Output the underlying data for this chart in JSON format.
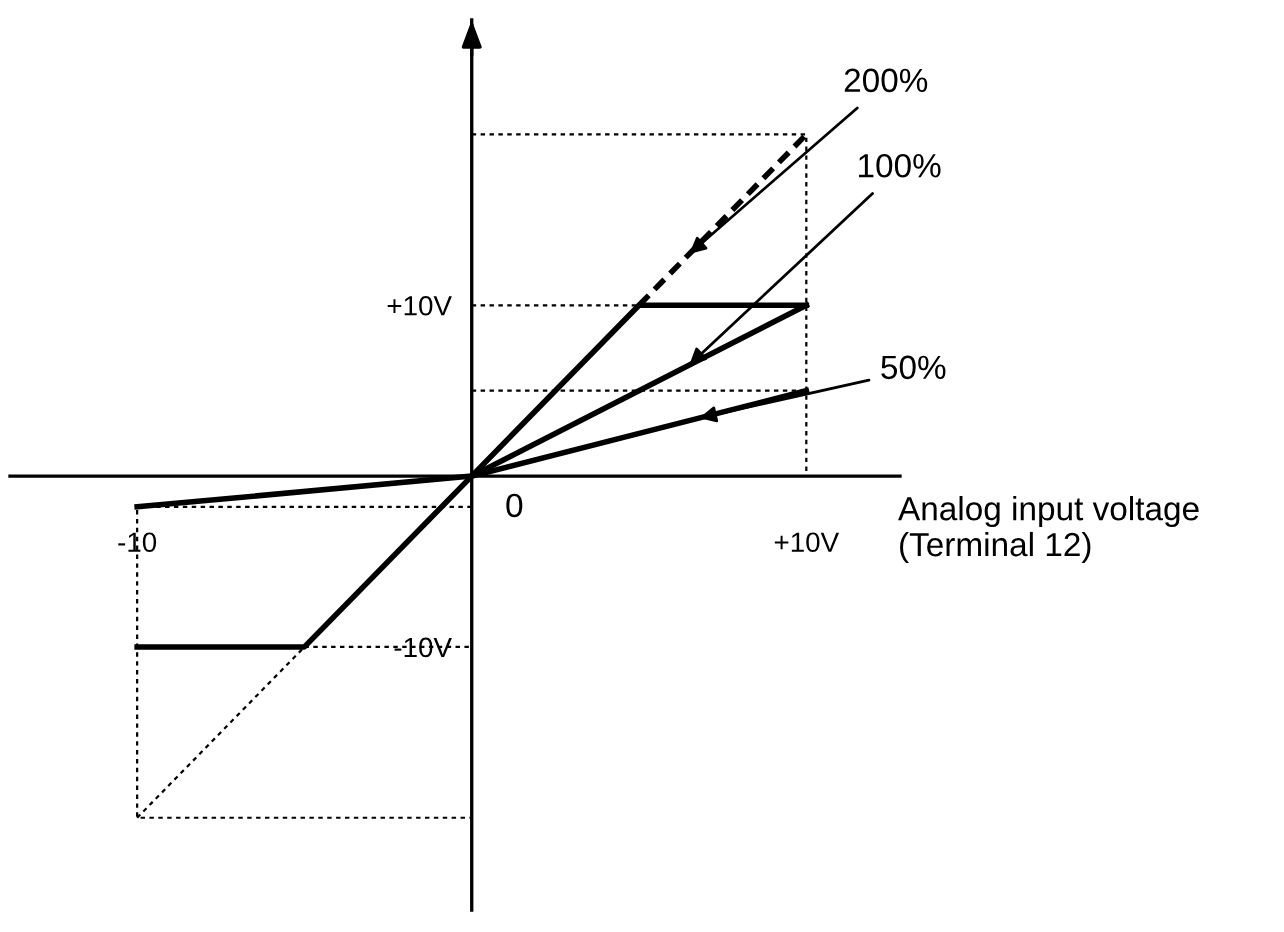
{
  "chart_data": {
    "type": "line",
    "xlabel": "Analog input voltage\n(Terminal 12)",
    "xlim": [
      -13.8,
      12.8
    ],
    "ylim": [
      -25.4,
      26.7
    ],
    "xticks": [
      {
        "value": -10,
        "label": "-10"
      },
      {
        "value": 10,
        "label": "+10V"
      }
    ],
    "annotations": [
      {
        "text": "0",
        "x": 0,
        "y": 0
      }
    ],
    "yticks": [
      {
        "value": -10,
        "label": "-10V"
      },
      {
        "value": 10,
        "label": "+10V"
      }
    ],
    "grid": false,
    "legend": false,
    "marker": "none",
    "series": [
      {
        "color": "#000000",
        "line_style": "solid",
        "x": [
          -10,
          -5,
          0,
          5,
          10
        ],
        "values": [
          -10,
          -10,
          0,
          10,
          10
        ]
      },
      {
        "name": "100%",
        "color": "#000000",
        "line_style": "solid",
        "x": [
          0,
          10
        ],
        "values": [
          0,
          10
        ]
      },
      {
        "name": "50%",
        "color": "#000000",
        "line_style": "solid",
        "x": [
          -10,
          0,
          10
        ],
        "values": [
          -1.8,
          0,
          5
        ]
      },
      {
        "name": "200%",
        "color": "#000000",
        "line_style": "dashed",
        "x": [
          5,
          10
        ],
        "values": [
          10,
          20
        ]
      },
      {
        "color": "#000000",
        "line_style": "dotted",
        "x": [
          -10,
          -5
        ],
        "values": [
          -20,
          -10
        ]
      },
      {
        "color": "#000000",
        "line_style": "dotted",
        "x": [
          0,
          10,
          10
        ],
        "values": [
          20,
          20,
          0
        ]
      },
      {
        "color": "#000000",
        "line_style": "dotted",
        "x": [
          0,
          5
        ],
        "values": [
          10,
          10
        ]
      },
      {
        "color": "#000000",
        "line_style": "dotted",
        "x": [
          0,
          10
        ],
        "values": [
          5,
          5
        ]
      },
      {
        "color": "#000000",
        "line_style": "dotted",
        "x": [
          0,
          -10,
          -10,
          0
        ],
        "values": [
          -1.8,
          -1.8,
          -20,
          -20
        ]
      },
      {
        "color": "#000000",
        "line_style": "dotted",
        "x": [
          -5,
          0
        ],
        "values": [
          -10,
          -10
        ]
      }
    ]
  }
}
